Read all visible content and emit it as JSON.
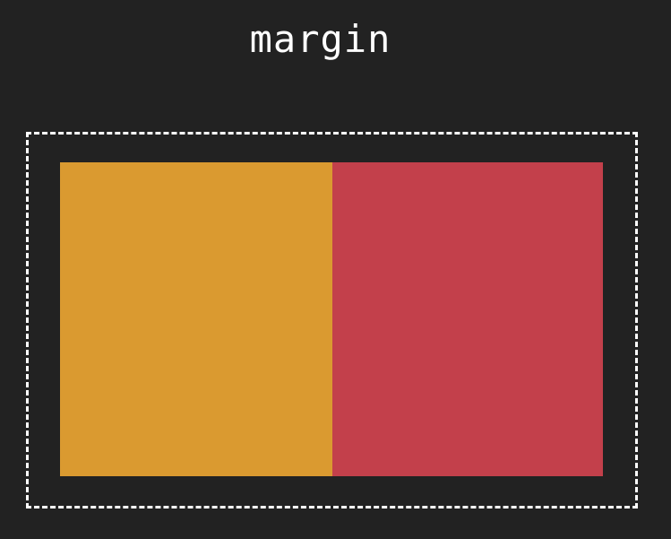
{
  "title": "margin",
  "colors": {
    "background": "#222222",
    "left_box": "#DA9A30",
    "right_box": "#C3404B",
    "outline": "#FFFFFF",
    "title_text": "#FFFFFF"
  }
}
